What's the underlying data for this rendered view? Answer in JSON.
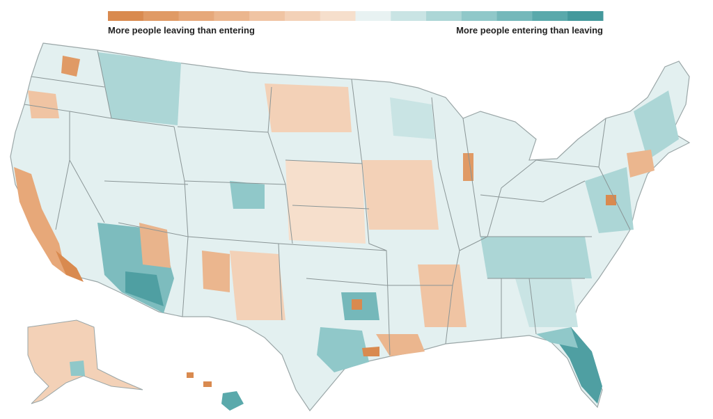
{
  "legend": {
    "colors": [
      "#d98a4f",
      "#e09a65",
      "#e6a87a",
      "#ebb68e",
      "#f0c4a3",
      "#f3d1b7",
      "#f6dfcc",
      "#e8f2f2",
      "#c9e4e4",
      "#acd6d6",
      "#90c8c9",
      "#75b8ba",
      "#5aa9ab",
      "#44999c"
    ],
    "left_label": "More people leaving than entering",
    "right_label": "More people entering than leaving"
  }
}
